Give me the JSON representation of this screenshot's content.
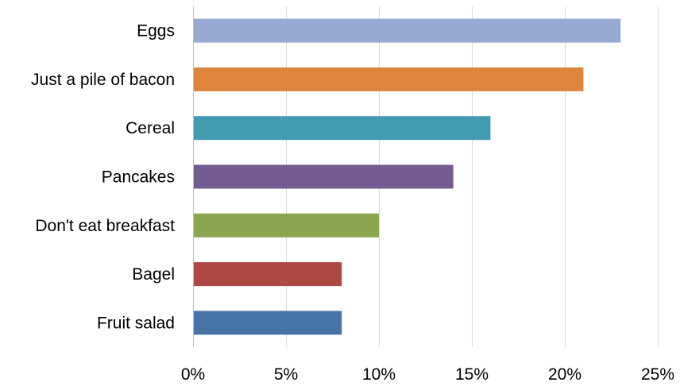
{
  "chart_data": {
    "type": "bar",
    "orientation": "horizontal",
    "title": "",
    "xlabel": "",
    "ylabel": "",
    "categories": [
      "Eggs",
      "Just a pile of bacon",
      "Cereal",
      "Pancakes",
      "Don't eat breakfast",
      "Bagel",
      "Fruit salad"
    ],
    "values": [
      23,
      21,
      16,
      14,
      10,
      8,
      8
    ],
    "colors": [
      "#95A9D3",
      "#DD843E",
      "#439BB1",
      "#745B91",
      "#8AA64E",
      "#AD4845",
      "#4674A8"
    ],
    "xlim": [
      0,
      25
    ],
    "x_ticks": [
      0,
      5,
      10,
      15,
      20,
      25
    ],
    "x_tick_labels": [
      "0%",
      "5%",
      "10%",
      "15%",
      "20%",
      "25%"
    ],
    "value_unit": "%",
    "grid": "vertical",
    "legend": "none"
  }
}
